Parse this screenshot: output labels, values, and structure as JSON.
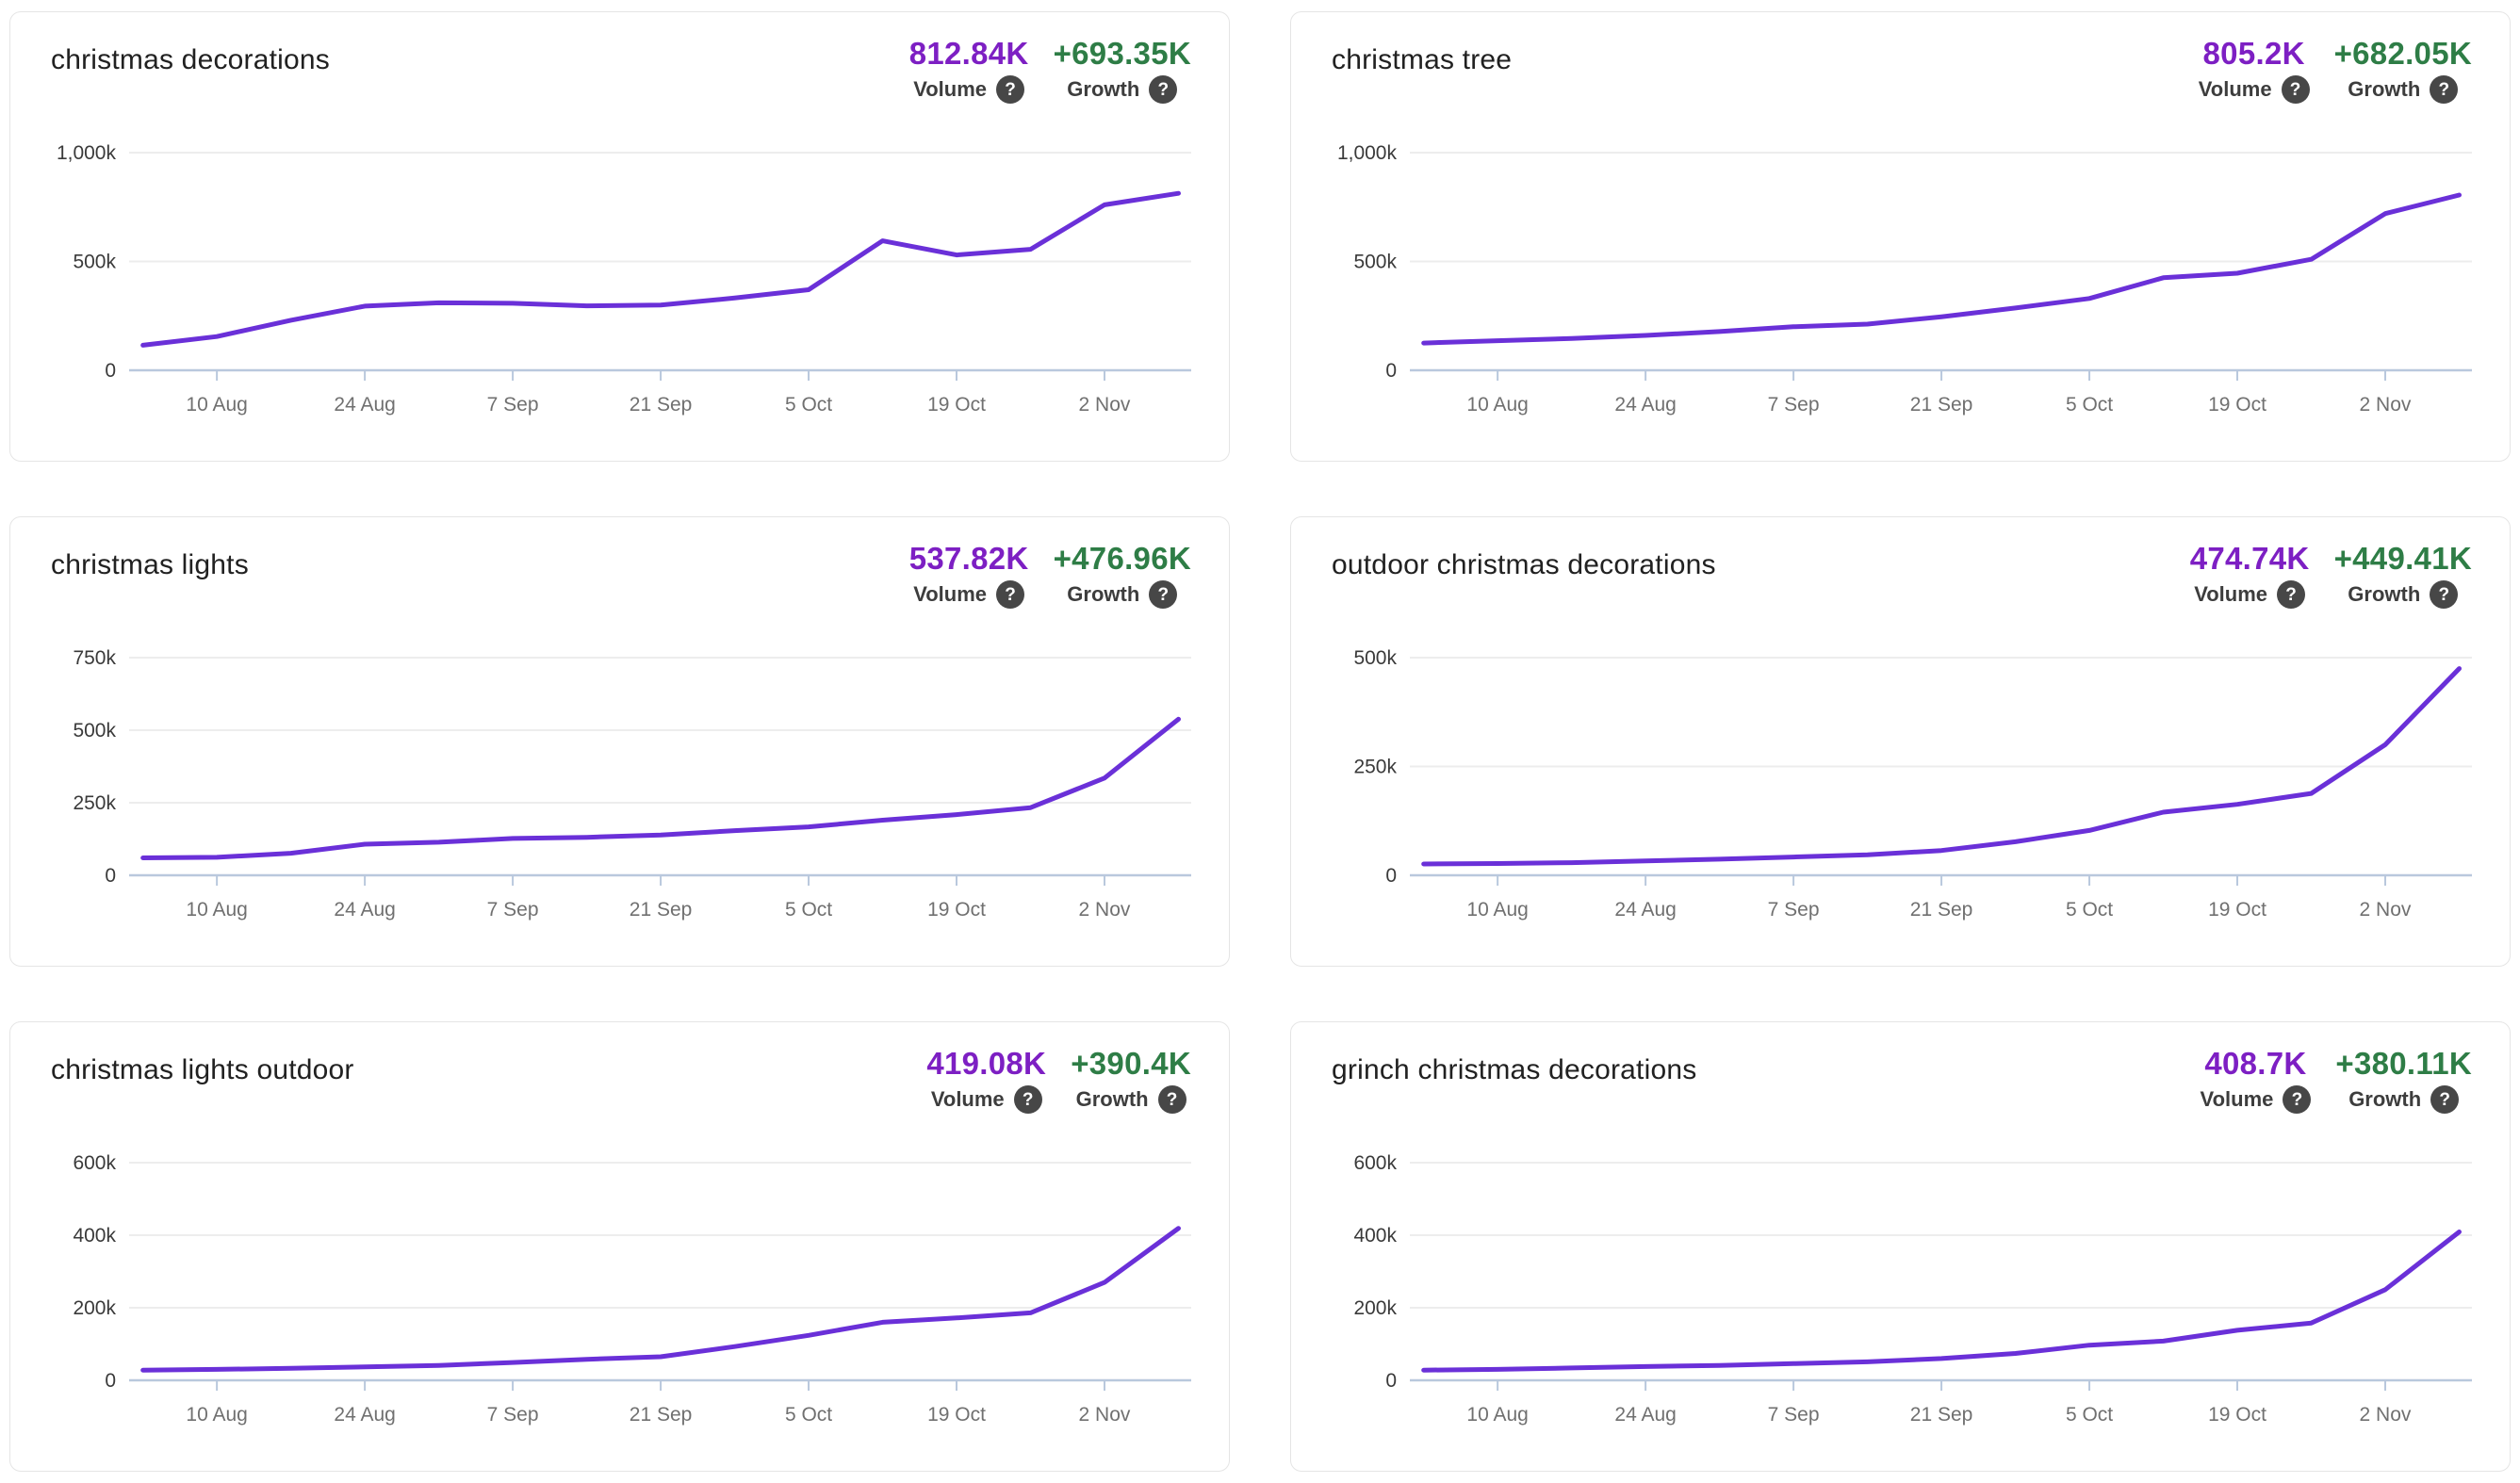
{
  "shared": {
    "volume_label": "Volume",
    "growth_label": "Growth",
    "help_glyph": "?",
    "x_tick_labels": [
      "10 Aug",
      "24 Aug",
      "7 Sep",
      "21 Sep",
      "5 Oct",
      "19 Oct",
      "2 Nov"
    ]
  },
  "colors": {
    "line": "#6a30d8",
    "volume_value": "#7d1fc3",
    "growth_value": "#2e7d46",
    "grid_line": "#ededed",
    "axis_line": "#b9c8dd",
    "x_label": "#707070",
    "y_label": "#3a3a3a",
    "metric_label": "#3d3d3d",
    "help_icon_bg": "#474747",
    "card_border": "#e5e5e5",
    "title_text": "#212121"
  },
  "cards": [
    {
      "title": "christmas decorations",
      "volume": "812.84K",
      "growth": "+693.35K"
    },
    {
      "title": "christmas tree",
      "volume": "805.2K",
      "growth": "+682.05K"
    },
    {
      "title": "christmas lights",
      "volume": "537.82K",
      "growth": "+476.96K"
    },
    {
      "title": "outdoor christmas decorations",
      "volume": "474.74K",
      "growth": "+449.41K"
    },
    {
      "title": "christmas lights outdoor",
      "volume": "419.08K",
      "growth": "+390.4K"
    },
    {
      "title": "grinch christmas decorations",
      "volume": "408.7K",
      "growth": "+380.11K"
    }
  ],
  "chart_data": [
    {
      "type": "line",
      "title": "christmas decorations",
      "series": [
        {
          "name": "Volume",
          "unit": "thousands",
          "values": [
            115,
            155,
            230,
            295,
            310,
            308,
            296,
            300,
            332,
            370,
            595,
            530,
            556,
            760,
            813
          ]
        }
      ],
      "x_tick_labels": [
        "10 Aug",
        "24 Aug",
        "7 Sep",
        "21 Sep",
        "5 Oct",
        "19 Oct",
        "2 Nov"
      ],
      "x_tick_point_indices": [
        1,
        3,
        5,
        7,
        9,
        11,
        13
      ],
      "y_tick_values_thousands": [
        0,
        500,
        1000
      ],
      "y_tick_labels": [
        "0",
        "500k",
        "1,000k"
      ],
      "ylim_thousands": [
        0,
        1065
      ],
      "grid": true,
      "legend": "none"
    },
    {
      "type": "line",
      "title": "christmas tree",
      "series": [
        {
          "name": "Volume",
          "unit": "thousands",
          "values": [
            125,
            136,
            146,
            160,
            178,
            200,
            212,
            246,
            286,
            330,
            425,
            446,
            510,
            720,
            805
          ]
        }
      ],
      "x_tick_labels": [
        "10 Aug",
        "24 Aug",
        "7 Sep",
        "21 Sep",
        "5 Oct",
        "19 Oct",
        "2 Nov"
      ],
      "x_tick_point_indices": [
        1,
        3,
        5,
        7,
        9,
        11,
        13
      ],
      "y_tick_values_thousands": [
        0,
        500,
        1000
      ],
      "y_tick_labels": [
        "0",
        "500k",
        "1,000k"
      ],
      "ylim_thousands": [
        0,
        1065
      ],
      "grid": true,
      "legend": "none"
    },
    {
      "type": "line",
      "title": "christmas lights",
      "series": [
        {
          "name": "Volume",
          "unit": "thousands",
          "values": [
            60,
            62,
            76,
            107,
            114,
            127,
            131,
            139,
            154,
            167,
            190,
            209,
            233,
            335,
            538
          ]
        }
      ],
      "x_tick_labels": [
        "10 Aug",
        "24 Aug",
        "7 Sep",
        "21 Sep",
        "5 Oct",
        "19 Oct",
        "2 Nov"
      ],
      "x_tick_point_indices": [
        1,
        3,
        5,
        7,
        9,
        11,
        13
      ],
      "y_tick_values_thousands": [
        0,
        250,
        500,
        750
      ],
      "y_tick_labels": [
        "0",
        "250k",
        "500k",
        "750k"
      ],
      "ylim_thousands": [
        0,
        800
      ],
      "grid": true,
      "legend": "none"
    },
    {
      "type": "line",
      "title": "outdoor christmas decorations",
      "series": [
        {
          "name": "Volume",
          "unit": "thousands",
          "values": [
            26,
            27,
            29,
            33,
            37,
            42,
            47,
            57,
            77,
            103,
            145,
            163,
            188,
            300,
            475
          ]
        }
      ],
      "x_tick_labels": [
        "10 Aug",
        "24 Aug",
        "7 Sep",
        "21 Sep",
        "5 Oct",
        "19 Oct",
        "2 Nov"
      ],
      "x_tick_point_indices": [
        1,
        3,
        5,
        7,
        9,
        11,
        13
      ],
      "y_tick_values_thousands": [
        0,
        250,
        500
      ],
      "y_tick_labels": [
        "0",
        "250k",
        "500k"
      ],
      "ylim_thousands": [
        0,
        530
      ],
      "grid": true,
      "legend": "none"
    },
    {
      "type": "line",
      "title": "christmas lights outdoor",
      "series": [
        {
          "name": "Volume",
          "unit": "thousands",
          "values": [
            28,
            30,
            33,
            37,
            41,
            49,
            58,
            65,
            93,
            124,
            160,
            172,
            186,
            270,
            419
          ]
        }
      ],
      "x_tick_labels": [
        "10 Aug",
        "24 Aug",
        "7 Sep",
        "21 Sep",
        "5 Oct",
        "19 Oct",
        "2 Nov"
      ],
      "x_tick_point_indices": [
        1,
        3,
        5,
        7,
        9,
        11,
        13
      ],
      "y_tick_values_thousands": [
        0,
        200,
        400,
        600
      ],
      "y_tick_labels": [
        "0",
        "200k",
        "400k",
        "600k"
      ],
      "ylim_thousands": [
        0,
        640
      ],
      "grid": true,
      "legend": "none"
    },
    {
      "type": "line",
      "title": "grinch christmas decorations",
      "series": [
        {
          "name": "Volume",
          "unit": "thousands",
          "values": [
            28,
            30,
            34,
            38,
            41,
            46,
            51,
            60,
            74,
            97,
            108,
            138,
            158,
            250,
            409
          ]
        }
      ],
      "x_tick_labels": [
        "10 Aug",
        "24 Aug",
        "7 Sep",
        "21 Sep",
        "5 Oct",
        "19 Oct",
        "2 Nov"
      ],
      "x_tick_point_indices": [
        1,
        3,
        5,
        7,
        9,
        11,
        13
      ],
      "y_tick_values_thousands": [
        0,
        200,
        400,
        600
      ],
      "y_tick_labels": [
        "0",
        "200k",
        "400k",
        "600k"
      ],
      "ylim_thousands": [
        0,
        640
      ],
      "grid": true,
      "legend": "none"
    }
  ]
}
